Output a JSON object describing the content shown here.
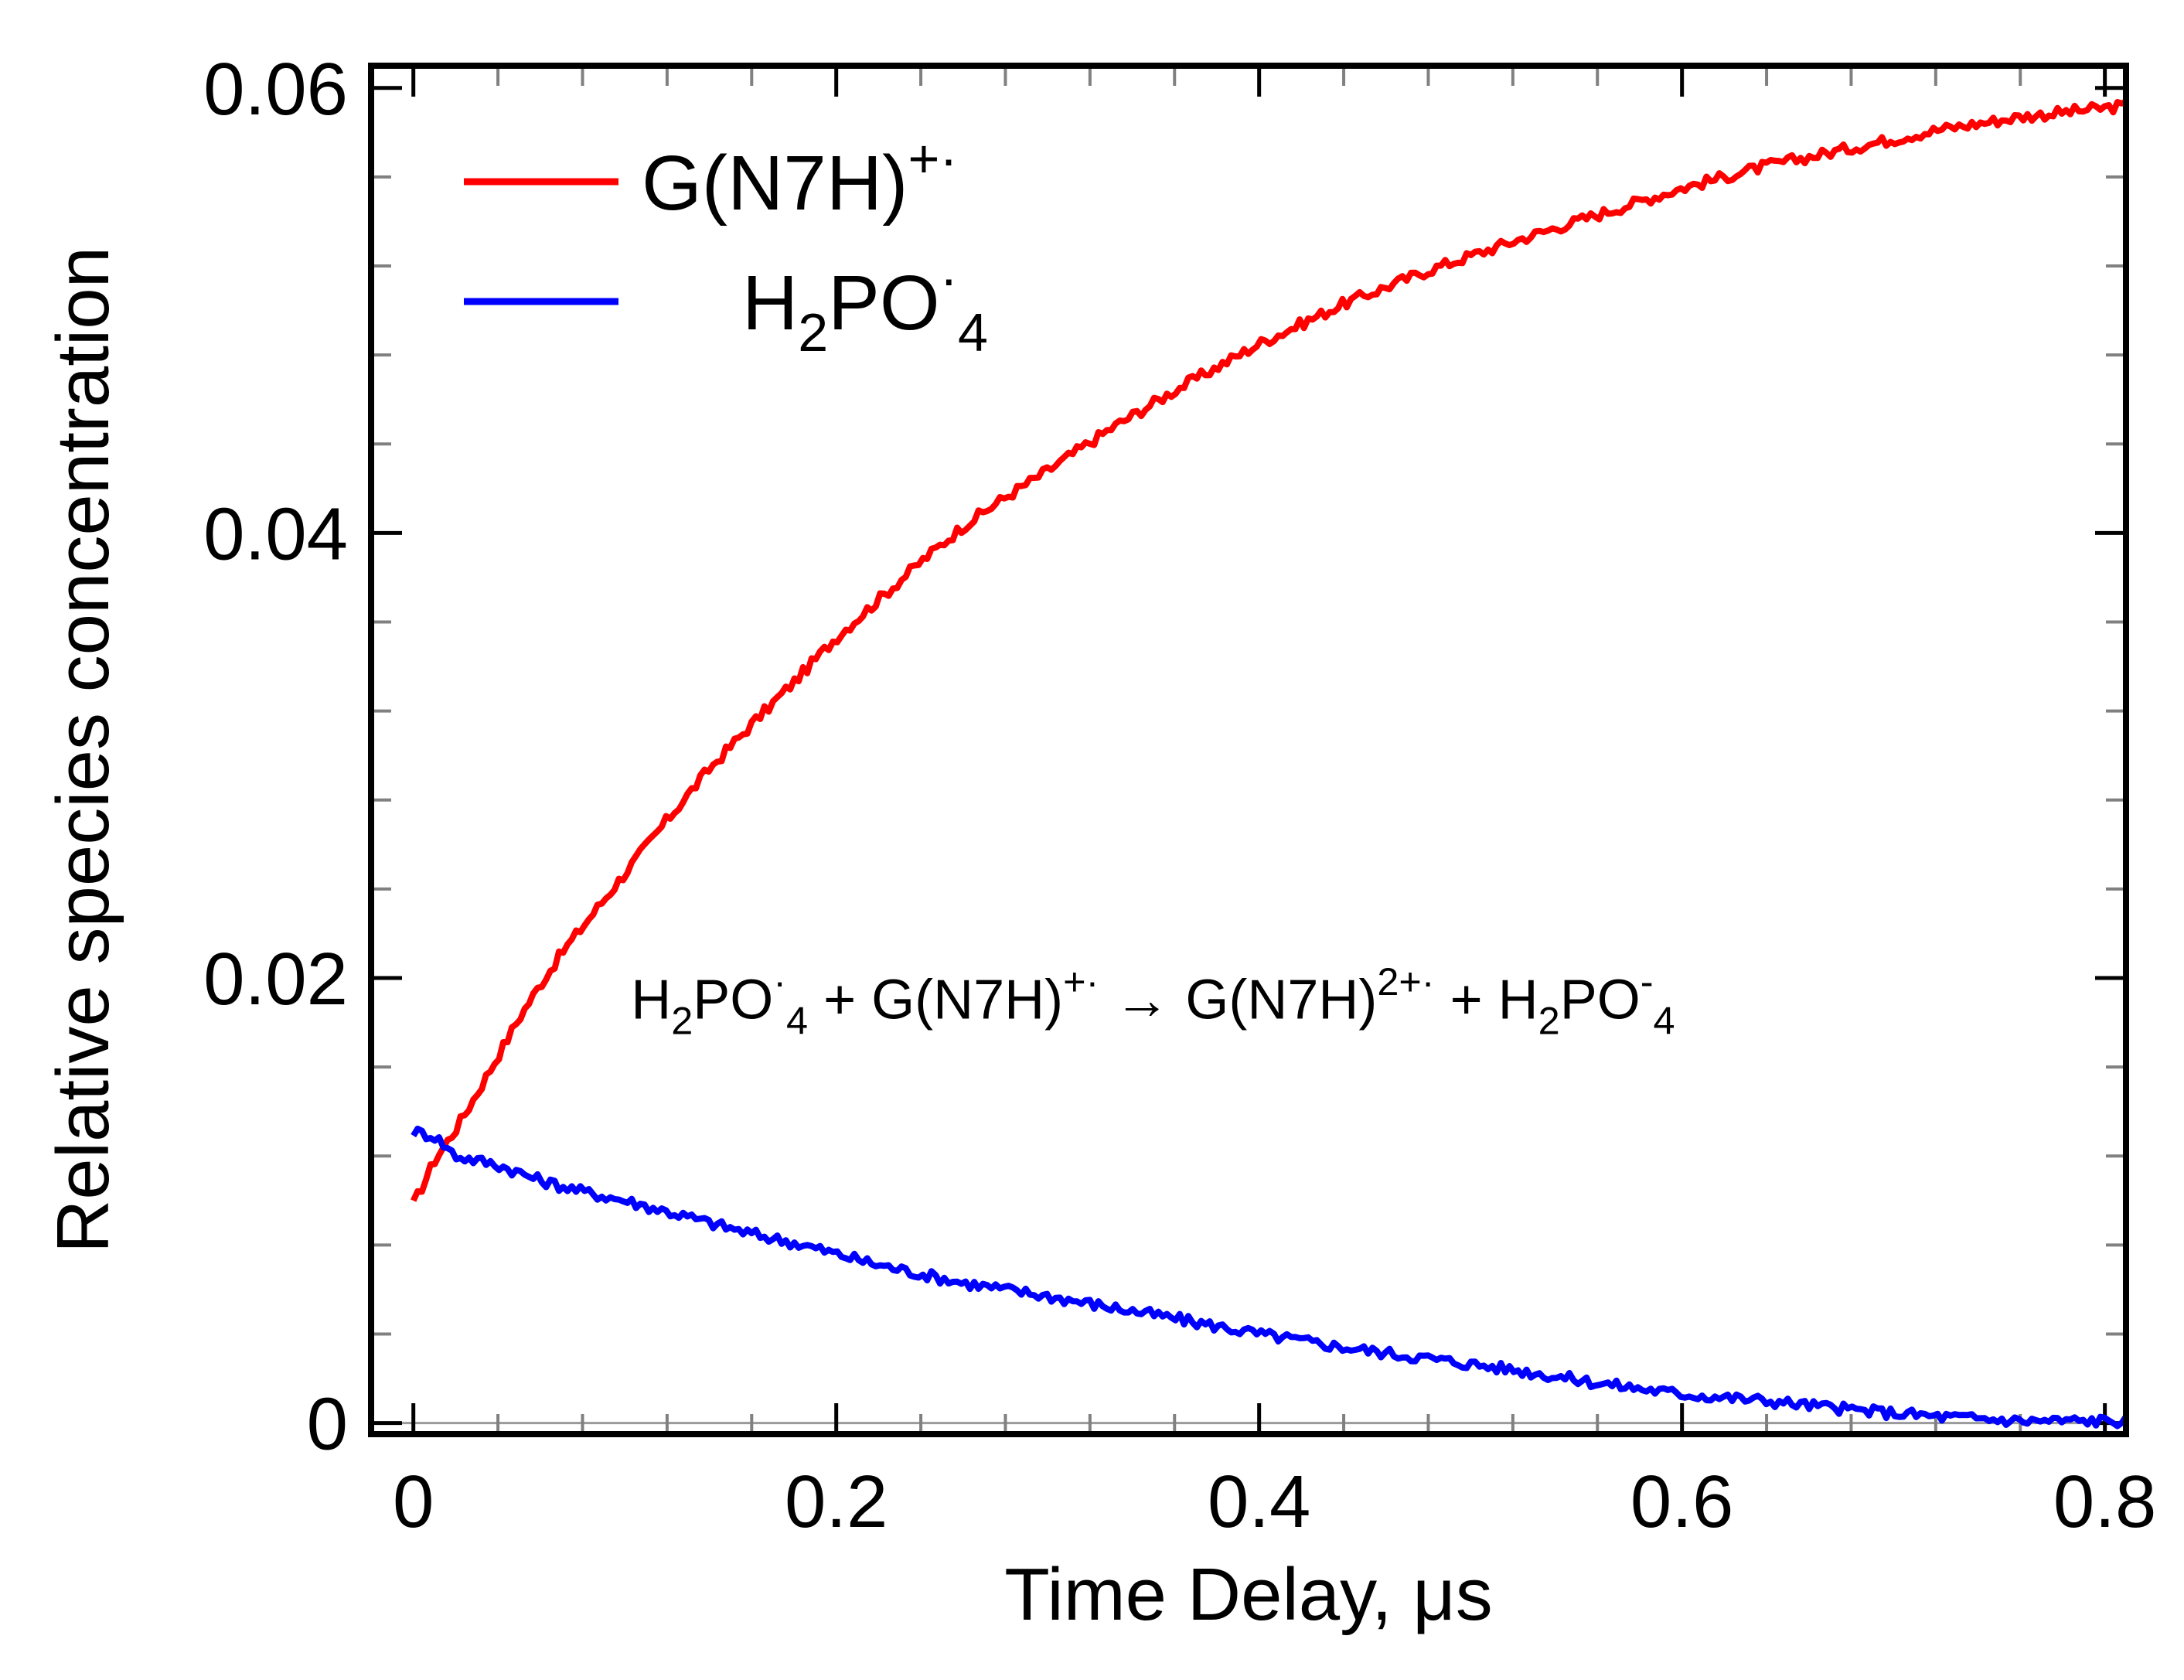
{
  "chart_data": {
    "type": "line",
    "title": "",
    "xlabel": "Time Delay, μs",
    "ylabel": "Relative species concentration",
    "xlim": [
      -0.02,
      0.81
    ],
    "ylim": [
      -0.0005,
      0.061
    ],
    "x_ticks": [
      0,
      0.2,
      0.4,
      0.6,
      0.8
    ],
    "x_tick_labels": [
      "0",
      "0.2",
      "0.4",
      "0.6",
      "0.8"
    ],
    "y_ticks": [
      0,
      0.02,
      0.04,
      0.06
    ],
    "y_tick_labels": [
      "0",
      "0.02",
      "0.04",
      "0.06"
    ],
    "x_minor_step": 0.04,
    "y_minor_step": 0.004,
    "legend_position": "top-left",
    "annotation": {
      "text_parts": [
        {
          "t": "H",
          "s": "base"
        },
        {
          "t": "2",
          "s": "sub"
        },
        {
          "t": "PO",
          "s": "base"
        },
        {
          "t": "·",
          "s": "sup"
        },
        {
          "t": "4",
          "s": "sub"
        },
        {
          "t": " + ",
          "s": "base"
        },
        {
          "t": "G(N7H)",
          "s": "base"
        },
        {
          "t": "+·",
          "s": "sup"
        },
        {
          "t": " → ",
          "s": "base"
        },
        {
          "t": "G(N7H)",
          "s": "base"
        },
        {
          "t": "2+·",
          "s": "sup"
        },
        {
          "t": " + ",
          "s": "base"
        },
        {
          "t": "H",
          "s": "base"
        },
        {
          "t": "2",
          "s": "sub"
        },
        {
          "t": "PO",
          "s": "base"
        },
        {
          "t": "-",
          "s": "sup"
        },
        {
          "t": "4",
          "s": "sub"
        }
      ],
      "x": 0.1,
      "y": 0.0195
    },
    "series": [
      {
        "name": "G(N7H)+·",
        "legend_parts": [
          {
            "t": "G(N7H)",
            "s": "base"
          },
          {
            "t": "+·",
            "s": "sup"
          }
        ],
        "color": "#ff0000",
        "x": [
          0.0,
          0.01,
          0.02,
          0.03,
          0.04,
          0.05,
          0.06,
          0.07,
          0.08,
          0.09,
          0.1,
          0.12,
          0.14,
          0.16,
          0.18,
          0.2,
          0.22,
          0.24,
          0.26,
          0.28,
          0.3,
          0.33,
          0.36,
          0.4,
          0.44,
          0.48,
          0.52,
          0.56,
          0.6,
          0.64,
          0.68,
          0.72,
          0.76,
          0.8,
          0.81
        ],
        "values": [
          0.0098,
          0.0118,
          0.0132,
          0.0148,
          0.0165,
          0.0182,
          0.0197,
          0.0211,
          0.0223,
          0.0235,
          0.0247,
          0.0271,
          0.0294,
          0.0314,
          0.0333,
          0.0353,
          0.037,
          0.0387,
          0.0403,
          0.0416,
          0.0428,
          0.0447,
          0.0464,
          0.0485,
          0.0503,
          0.0518,
          0.0531,
          0.0543,
          0.0555,
          0.0565,
          0.0573,
          0.0581,
          0.0587,
          0.0591,
          0.0592
        ]
      },
      {
        "name": "H2PO4·",
        "legend_parts": [
          {
            "t": "H",
            "s": "base"
          },
          {
            "t": "2",
            "s": "sub"
          },
          {
            "t": "PO",
            "s": "base"
          },
          {
            "t": "·",
            "s": "sup"
          },
          {
            "t": "4",
            "s": "sub"
          }
        ],
        "color": "#0000ff",
        "x": [
          0.0,
          0.01,
          0.02,
          0.04,
          0.06,
          0.08,
          0.1,
          0.12,
          0.14,
          0.16,
          0.18,
          0.2,
          0.22,
          0.24,
          0.26,
          0.28,
          0.3,
          0.33,
          0.36,
          0.4,
          0.44,
          0.48,
          0.52,
          0.56,
          0.6,
          0.64,
          0.68,
          0.72,
          0.76,
          0.8,
          0.81
        ],
        "values": [
          0.0131,
          0.0129,
          0.012,
          0.0116,
          0.0109,
          0.0104,
          0.01,
          0.0095,
          0.009,
          0.0085,
          0.0081,
          0.0076,
          0.0071,
          0.0067,
          0.0063,
          0.006,
          0.0057,
          0.0052,
          0.0047,
          0.004,
          0.0034,
          0.0029,
          0.0024,
          0.0018,
          0.0013,
          0.001,
          0.0006,
          0.0003,
          0.0001,
          0.0001,
          0.0001
        ]
      }
    ]
  }
}
